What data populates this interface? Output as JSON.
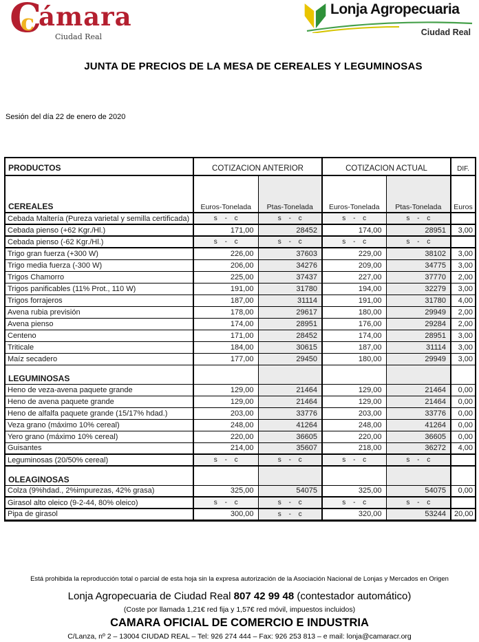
{
  "logos": {
    "camara": {
      "big_c": "C",
      "small_c": "c",
      "rest": "ámara",
      "subtitle": "Ciudad Real"
    },
    "lonja": {
      "title": "Lonja Agropecuaria",
      "subtitle": "Ciudad Real",
      "leaf_icon": "double-leaf-v-mark",
      "colors": {
        "leaf_yellow": "#e9c400",
        "leaf_green": "#2e9139",
        "swoosh_green": "#45a04a",
        "swoosh_yellow": "#d6c400"
      }
    }
  },
  "colors": {
    "brand_red": "#b41f2f",
    "brand_yellow": "#f0b422",
    "shaded_column": "#ebebeb"
  },
  "title": "JUNTA DE PRECIOS DE LA MESA DE CEREALES Y LEGUMINOSAS",
  "session": "Sesión del día 22 de enero de 2020",
  "table": {
    "col_headers": {
      "productos": "PRODUCTOS",
      "anterior": "COTIZACION ANTERIOR",
      "actual": "COTIZACION ACTUAL",
      "dif": "DIF."
    },
    "unit_headers": [
      "Euros-Tonelada",
      "Ptas-Tonelada",
      "Euros-Tonelada",
      "Ptas-Tonelada",
      "Euros"
    ],
    "no_quote": "s - c",
    "sections": [
      {
        "name": "CEREALES",
        "rows": [
          {
            "product": "Cebada Maltería (Pureza varietal y semilla certificada)",
            "values": [
              "s - c",
              "s - c",
              "s - c",
              "s - c",
              ""
            ]
          },
          {
            "product": "Cebada pienso (+62 Kgr./Hl.)",
            "values": [
              "171,00",
              "28452",
              "174,00",
              "28951",
              "3,00"
            ]
          },
          {
            "product": "Cebada pienso (-62 Kgr./Hl.)",
            "values": [
              "s - c",
              "s - c",
              "s - c",
              "s - c",
              ""
            ]
          },
          {
            "product": "Trigo gran fuerza (+300 W)",
            "values": [
              "226,00",
              "37603",
              "229,00",
              "38102",
              "3,00"
            ]
          },
          {
            "product": "Trigo  media fuerza (-300 W)",
            "values": [
              "206,00",
              "34276",
              "209,00",
              "34775",
              "3,00"
            ]
          },
          {
            "product": "Trigos Chamorro",
            "values": [
              "225,00",
              "37437",
              "227,00",
              "37770",
              "2,00"
            ]
          },
          {
            "product": "Trigos panificables (11% Prot., 110 W)",
            "values": [
              "191,00",
              "31780",
              "194,00",
              "32279",
              "3,00"
            ]
          },
          {
            "product": "Trigos forrajeros",
            "values": [
              "187,00",
              "31114",
              "191,00",
              "31780",
              "4,00"
            ]
          },
          {
            "product": "Avena rubia previsión",
            "values": [
              "178,00",
              "29617",
              "180,00",
              "29949",
              "2,00"
            ]
          },
          {
            "product": "Avena pienso",
            "values": [
              "174,00",
              "28951",
              "176,00",
              "29284",
              "2,00"
            ]
          },
          {
            "product": "Centeno",
            "values": [
              "171,00",
              "28452",
              "174,00",
              "28951",
              "3,00"
            ]
          },
          {
            "product": "Triticale",
            "values": [
              "184,00",
              "30615",
              "187,00",
              "31114",
              "3,00"
            ]
          },
          {
            "product": "Maíz secadero",
            "values": [
              "177,00",
              "29450",
              "180,00",
              "29949",
              "3,00"
            ]
          }
        ]
      },
      {
        "name": "LEGUMINOSAS",
        "rows": [
          {
            "product": "Heno de veza-avena paquete grande",
            "values": [
              "129,00",
              "21464",
              "129,00",
              "21464",
              "0,00"
            ]
          },
          {
            "product": "Heno de avena paquete grande",
            "values": [
              "129,00",
              "21464",
              "129,00",
              "21464",
              "0,00"
            ]
          },
          {
            "product": "Heno de alfalfa paquete grande (15/17% hdad.)",
            "values": [
              "203,00",
              "33776",
              "203,00",
              "33776",
              "0,00"
            ]
          },
          {
            "product": "Veza grano  (máximo 10% cereal)",
            "values": [
              "248,00",
              "41264",
              "248,00",
              "41264",
              "0,00"
            ]
          },
          {
            "product": "Yero grano (máximo 10% cereal)",
            "values": [
              "220,00",
              "36605",
              "220,00",
              "36605",
              "0,00"
            ]
          },
          {
            "product": "Guisantes",
            "values": [
              "214,00",
              "35607",
              "218,00",
              "36272",
              "4,00"
            ]
          },
          {
            "product": "Leguminosas (20/50% cereal)",
            "values": [
              "s - c",
              "s - c",
              "s - c",
              "s - c",
              ""
            ]
          }
        ]
      },
      {
        "name": "OLEAGINOSAS",
        "rows": [
          {
            "product": "Colza (9%hdad.,  2%impurezas,  42% grasa)",
            "values": [
              "325,00",
              "54075",
              "325,00",
              "54075",
              "0,00"
            ]
          },
          {
            "product": "Girasol alto oleico (9-2-44, 80% oleico)",
            "values": [
              "s - c",
              "s - c",
              "s - c",
              "s - c",
              ""
            ]
          },
          {
            "product": "Pipa de girasol",
            "values": [
              "300,00",
              "s - c",
              "320,00",
              "53244",
              "20,00"
            ]
          }
        ]
      }
    ]
  },
  "footer": {
    "prohibition": "Está prohibida la reproducción total o parcial de esta hoja sin la expresa autorización de la Asociación Nacional de Lonjas y Mercados en Origen",
    "phone_pre": "Lonja Agropecuaria de Ciudad Real ",
    "phone_number": "807 42 99 48",
    "phone_post": " (contestador automático)",
    "cost_note": "(Coste por llamada 1,21€ red fija y 1,57€ red móvil, impuestos incluidos)",
    "chamber": "CAMARA OFICIAL DE COMERCIO E INDUSTRIA",
    "address": "C/Lanza, nº 2 – 13004  CIUDAD REAL – Tel: 926 274 444 – Fax: 926 253 813 – e mail: lonja@camaracr.org"
  }
}
